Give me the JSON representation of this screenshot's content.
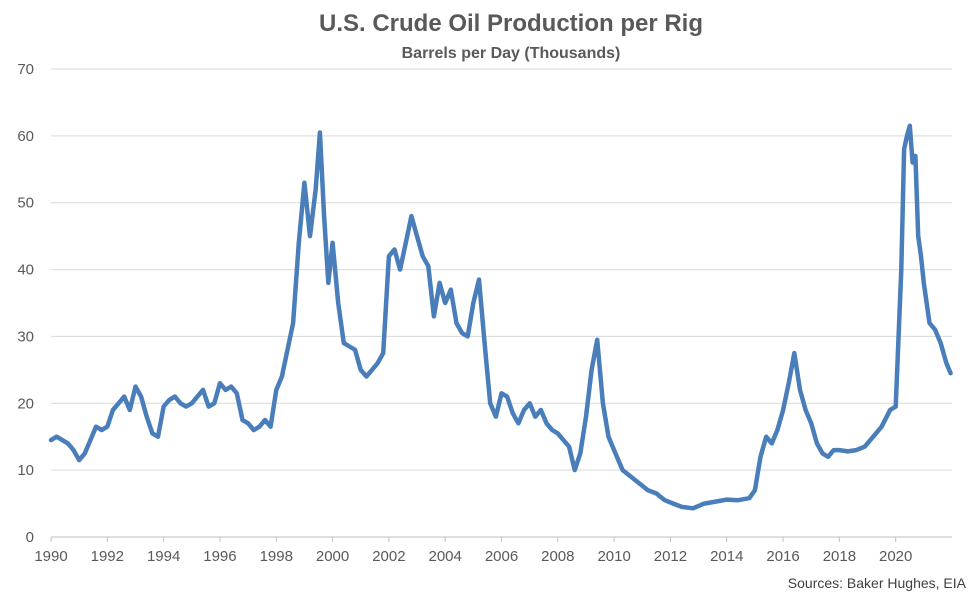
{
  "chart_data": {
    "type": "line",
    "title": "U.S. Crude Oil Production per Rig",
    "subtitle": "Barrels per Day (Thousands)",
    "source": "Sources: Baker Hughes, EIA",
    "xlim": [
      1990,
      2022
    ],
    "ylim": [
      0,
      70
    ],
    "x_ticks": [
      "1990",
      "1992",
      "1994",
      "1996",
      "1998",
      "2000",
      "2002",
      "2004",
      "2006",
      "2008",
      "2010",
      "2012",
      "2014",
      "2016",
      "2018",
      "2020"
    ],
    "y_ticks": [
      "0",
      "10",
      "20",
      "30",
      "40",
      "50",
      "60",
      "70"
    ],
    "grid": true,
    "legend": "none",
    "line_color": "#4a7ebb",
    "series": [
      {
        "x": [
          1990.0,
          1990.2,
          1990.4,
          1990.6,
          1990.8,
          1991.0,
          1991.2,
          1991.4,
          1991.6,
          1991.8,
          1992.0,
          1992.2,
          1992.4,
          1992.6,
          1992.8,
          1993.0,
          1993.2,
          1993.4,
          1993.6,
          1993.8,
          1994.0,
          1994.2,
          1994.4,
          1994.6,
          1994.8,
          1995.0,
          1995.2,
          1995.4,
          1995.6,
          1995.8,
          1996.0,
          1996.2,
          1996.4,
          1996.6,
          1996.8,
          1997.0,
          1997.2,
          1997.4,
          1997.6,
          1997.8,
          1998.0,
          1998.2,
          1998.4,
          1998.6,
          1998.8,
          1999.0,
          1999.2,
          1999.4,
          1999.55,
          1999.7,
          1999.85,
          2000.0,
          2000.2,
          2000.4,
          2000.6,
          2000.8,
          2001.0,
          2001.2,
          2001.4,
          2001.6,
          2001.8,
          2002.0,
          2002.2,
          2002.4,
          2002.6,
          2002.8,
          2003.0,
          2003.2,
          2003.4,
          2003.6,
          2003.8,
          2004.0,
          2004.2,
          2004.4,
          2004.6,
          2004.8,
          2005.0,
          2005.2,
          2005.4,
          2005.6,
          2005.8,
          2006.0,
          2006.2,
          2006.4,
          2006.6,
          2006.8,
          2007.0,
          2007.2,
          2007.4,
          2007.6,
          2007.8,
          2008.0,
          2008.2,
          2008.4,
          2008.6,
          2008.8,
          2009.0,
          2009.2,
          2009.4,
          2009.6,
          2009.8,
          2010.0,
          2010.3,
          2010.6,
          2010.9,
          2011.2,
          2011.5,
          2011.8,
          2012.1,
          2012.4,
          2012.8,
          2013.2,
          2013.6,
          2014.0,
          2014.4,
          2014.8,
          2015.0,
          2015.2,
          2015.4,
          2015.6,
          2015.8,
          2016.0,
          2016.2,
          2016.4,
          2016.6,
          2016.8,
          2017.0,
          2017.2,
          2017.4,
          2017.6,
          2017.8,
          2018.0,
          2018.3,
          2018.6,
          2018.9,
          2019.2,
          2019.5,
          2019.8,
          2020.0,
          2020.2,
          2020.3,
          2020.4,
          2020.5,
          2020.6,
          2020.7,
          2020.8,
          2020.9,
          2021.0,
          2021.2,
          2021.4,
          2021.6,
          2021.8,
          2021.95
        ],
        "y": [
          14.5,
          15.0,
          14.5,
          14.0,
          13.0,
          11.5,
          12.5,
          14.5,
          16.5,
          16.0,
          16.5,
          19.0,
          20.0,
          21.0,
          19.0,
          22.5,
          21.0,
          18.0,
          15.5,
          15.0,
          19.5,
          20.5,
          21.0,
          20.0,
          19.5,
          20.0,
          21.0,
          22.0,
          19.5,
          20.0,
          23.0,
          22.0,
          22.5,
          21.5,
          17.5,
          17.0,
          16.0,
          16.5,
          17.5,
          16.5,
          22.0,
          24.0,
          28.0,
          32.0,
          44.0,
          53.0,
          45.0,
          52.0,
          60.5,
          48.0,
          38.0,
          44.0,
          35.0,
          29.0,
          28.5,
          28.0,
          25.0,
          24.0,
          25.0,
          26.0,
          27.5,
          42.0,
          43.0,
          40.0,
          44.0,
          48.0,
          45.0,
          42.0,
          40.5,
          33.0,
          38.0,
          35.0,
          37.0,
          32.0,
          30.5,
          30.0,
          35.0,
          38.5,
          29.0,
          20.0,
          18.0,
          21.5,
          21.0,
          18.5,
          17.0,
          19.0,
          20.0,
          18.0,
          19.0,
          17.0,
          16.0,
          15.5,
          14.5,
          13.5,
          10.0,
          12.5,
          18.0,
          25.0,
          29.5,
          20.0,
          15.0,
          13.0,
          10.0,
          9.0,
          8.0,
          7.0,
          6.5,
          5.5,
          5.0,
          4.5,
          4.3,
          5.0,
          5.3,
          5.6,
          5.5,
          5.8,
          7.0,
          12.0,
          15.0,
          14.0,
          16.0,
          19.0,
          23.0,
          27.5,
          22.0,
          19.0,
          17.0,
          14.0,
          12.5,
          12.0,
          13.0,
          13.0,
          12.8,
          13.0,
          13.5,
          15.0,
          16.5,
          19.0,
          19.5,
          40.0,
          58.0,
          60.0,
          61.5,
          56.0,
          57.0,
          45.0,
          42.0,
          38.0,
          32.0,
          31.0,
          29.0,
          26.0,
          24.5
        ]
      }
    ]
  }
}
